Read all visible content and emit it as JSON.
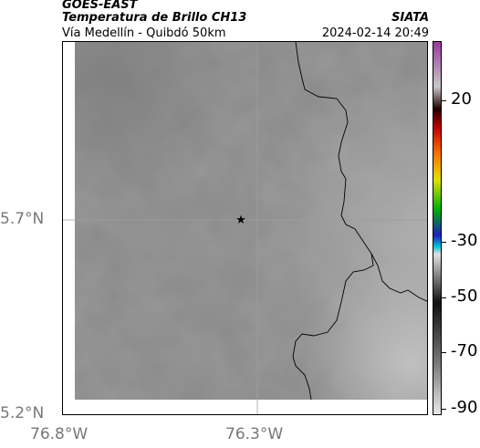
{
  "header": {
    "satellite": "GOES-EAST",
    "product": "Temperatura de Brillo CH13",
    "region": "Vía Medellín - Quibdó 50km",
    "organization": "SIATA",
    "datetime": "2024-02-14 20:49"
  },
  "axes": {
    "y_ticks": [
      "5.7°N",
      "5.2°N"
    ],
    "x_ticks": [
      "76.8°W",
      "76.3°W"
    ]
  },
  "colorbar": {
    "tick_labels": [
      "20",
      "-30",
      "-50",
      "-70",
      "-90"
    ],
    "colors": [
      "#e8e8e8",
      "#777777",
      "#101010",
      "#e0e0e0",
      "#00c8d8",
      "#2020c0",
      "#00b000",
      "#e0e000",
      "#ff7000",
      "#c00000",
      "#200000",
      "#c8c8c8",
      "#9a3aa0"
    ]
  },
  "map": {
    "marker": "star",
    "background_gray": "#8a8a8a"
  }
}
